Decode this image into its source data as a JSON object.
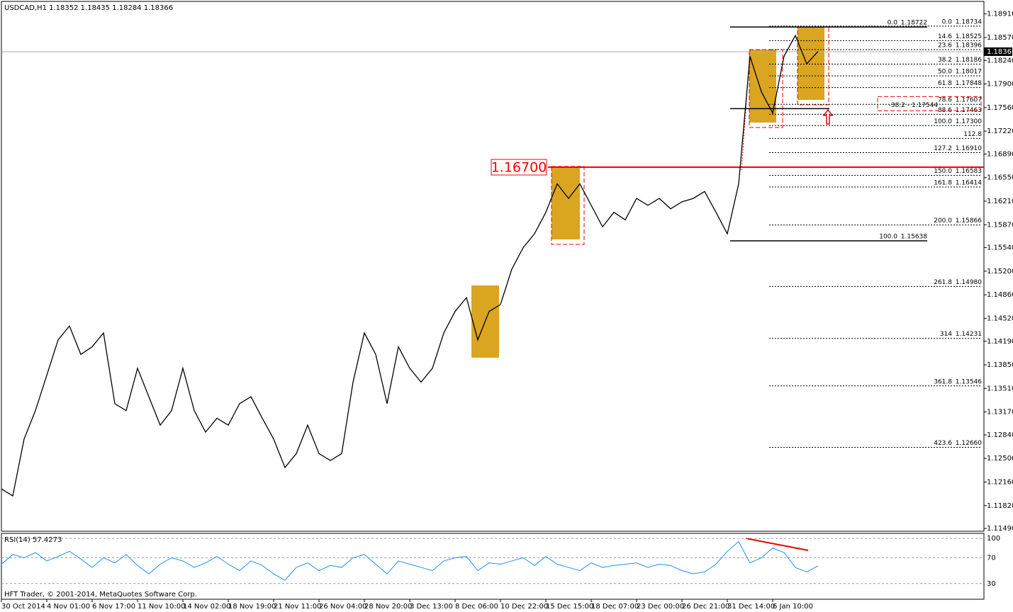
{
  "chart_data": [
    {
      "type": "line",
      "title": "USDCAD,H1  1.18352 1.18435 1.18284 1.18366",
      "color": "#000000",
      "values": [
        1.1206,
        1.1196,
        1.1278,
        1.1319,
        1.137,
        1.1421,
        1.1441,
        1.14,
        1.1411,
        1.1431,
        1.1329,
        1.1319,
        1.138,
        1.1339,
        1.1298,
        1.1319,
        1.138,
        1.1319,
        1.1288,
        1.1308,
        1.1298,
        1.1329,
        1.1339,
        1.1308,
        1.1278,
        1.1237,
        1.1257,
        1.1298,
        1.1257,
        1.1247,
        1.1257,
        1.136,
        1.1431,
        1.14,
        1.1329,
        1.1411,
        1.138,
        1.136,
        1.138,
        1.1431,
        1.1462,
        1.1482,
        1.1421,
        1.1462,
        1.1472,
        1.1523,
        1.1554,
        1.1574,
        1.1605,
        1.1646,
        1.1625,
        1.1646,
        1.1615,
        1.1584,
        1.1605,
        1.1594,
        1.1625,
        1.1615,
        1.1625,
        1.161,
        1.162,
        1.1625,
        1.1635,
        1.1605,
        1.1574,
        1.1646,
        1.183,
        1.1779,
        1.1748,
        1.183,
        1.186,
        1.1819,
        1.1837
      ],
      "xlim": [
        0,
        86.625
      ],
      "xticks": [
        {
          "value": 0,
          "label": "30 Oct 2014"
        },
        {
          "value": 4,
          "label": "4 Nov 01:00"
        },
        {
          "value": 8,
          "label": "6 Nov 17:00"
        },
        {
          "value": 12,
          "label": "11 Nov 10:00"
        },
        {
          "value": 16,
          "label": "14 Nov 02:00"
        },
        {
          "value": 20,
          "label": "18 Nov 19:00"
        },
        {
          "value": 24,
          "label": "21 Nov 11:00"
        },
        {
          "value": 28,
          "label": "26 Nov 04:00"
        },
        {
          "value": 32,
          "label": "28 Nov 20:00"
        },
        {
          "value": 36,
          "label": "3 Dec 13:00"
        },
        {
          "value": 40,
          "label": "8 Dec 06:00"
        },
        {
          "value": 44,
          "label": "10 Dec 22:00"
        },
        {
          "value": 48,
          "label": "15 Dec 15:00"
        },
        {
          "value": 52,
          "label": "18 Dec 07:00"
        },
        {
          "value": 56,
          "label": "23 Dec 00:00"
        },
        {
          "value": 60,
          "label": "26 Dec 21:00"
        },
        {
          "value": 64,
          "label": "31 Dec 14:00"
        },
        {
          "value": 68,
          "label": "6 Jan 10:00"
        }
      ],
      "ylim": [
        1.1145,
        1.1906
      ],
      "yticks": [
        {
          "value": 1.1891,
          "label": "1.18910"
        },
        {
          "value": 1.1857,
          "label": "1.18570"
        },
        {
          "value": 1.1824,
          "label": "1.18240"
        },
        {
          "value": 1.179,
          "label": "1.17900"
        },
        {
          "value": 1.1756,
          "label": "1.17560"
        },
        {
          "value": 1.1722,
          "label": "1.17220"
        },
        {
          "value": 1.1689,
          "label": "1.16890"
        },
        {
          "value": 1.1655,
          "label": "1.16550"
        },
        {
          "value": 1.1621,
          "label": "1.16210"
        },
        {
          "value": 1.1587,
          "label": "1.15870"
        },
        {
          "value": 1.1554,
          "label": "1.15540"
        },
        {
          "value": 1.152,
          "label": "1.15200"
        },
        {
          "value": 1.1486,
          "label": "1.14860"
        },
        {
          "value": 1.1452,
          "label": "1.14520"
        },
        {
          "value": 1.1419,
          "label": "1.14190"
        },
        {
          "value": 1.1385,
          "label": "1.13850"
        },
        {
          "value": 1.1351,
          "label": "1.13510"
        },
        {
          "value": 1.1317,
          "label": "1.13170"
        },
        {
          "value": 1.1284,
          "label": "1.12840"
        },
        {
          "value": 1.125,
          "label": "1.12500"
        },
        {
          "value": 1.1216,
          "label": "1.12160"
        },
        {
          "value": 1.1182,
          "label": "1.11820"
        },
        {
          "value": 1.1149,
          "label": "1.11490"
        }
      ],
      "current_price": {
        "value": 1.18366,
        "label": "1.18366"
      },
      "level_line": {
        "value": 1.167,
        "label": "1.16700",
        "color": "#ff0000"
      },
      "fib_left": [
        {
          "level": "0.0",
          "price": {
            "value": 1.18722,
            "label": "1.18722"
          }
        },
        {
          "level": "100.0",
          "price": {
            "value": 1.15638,
            "label": "1.15638"
          }
        }
      ],
      "fib_right": [
        {
          "level": "0.0",
          "price": {
            "value": 1.18734,
            "label": "1.18734"
          }
        },
        {
          "level": "14.6",
          "price": {
            "value": 1.18525,
            "label": "1.18525"
          }
        },
        {
          "level": "23.6",
          "price": {
            "value": 1.18396,
            "label": "1.18396"
          }
        },
        {
          "level": "38.2",
          "price": {
            "value": 1.18186,
            "label": "1.18186"
          }
        },
        {
          "level": "50.0",
          "price": {
            "value": 1.18017,
            "label": "1.18017"
          }
        },
        {
          "level": "61.8",
          "price": {
            "value": 1.17848,
            "label": "1.17848"
          }
        },
        {
          "level": "78.6",
          "price": {
            "value": 1.17607,
            "label": "1.17607"
          }
        },
        {
          "level": "88.6",
          "price": {
            "value": 1.17463,
            "label": "1.17463"
          }
        },
        {
          "level": "100.0",
          "price": {
            "value": 1.173,
            "label": "1.17300"
          }
        },
        {
          "level": "112.8",
          "price": 1.17116
        },
        {
          "level": "127.2",
          "price": {
            "value": 1.1691,
            "label": "1.16910"
          }
        },
        {
          "level": "150.0",
          "price": {
            "value": 1.16583,
            "label": "1.16583"
          }
        },
        {
          "level": "161.8",
          "price": {
            "value": 1.16414,
            "label": "1.16414"
          }
        },
        {
          "level": "200.0",
          "price": {
            "value": 1.15866,
            "label": "1.15866"
          }
        },
        {
          "level": "261.8",
          "price": {
            "value": 1.1498,
            "label": "1.14980"
          }
        },
        {
          "level": "314",
          "price": {
            "value": 1.14231,
            "label": "1.14231"
          }
        },
        {
          "level": "361.8",
          "price": {
            "value": 1.13546,
            "label": "1.13546"
          }
        },
        {
          "level": "423.6",
          "price": {
            "value": 1.1266,
            "label": "1.12660"
          }
        }
      ],
      "extension": {
        "level": "-38.2 -",
        "price": {
          "value": 1.17544,
          "label": "1.17544"
        }
      }
    },
    {
      "type": "line",
      "title": "RSI(14) 57.4273",
      "color": "#1e90ff",
      "values": [
        60,
        75,
        70,
        78,
        65,
        72,
        80,
        68,
        55,
        70,
        62,
        75,
        58,
        45,
        60,
        70,
        65,
        55,
        62,
        72,
        60,
        50,
        65,
        58,
        45,
        35,
        55,
        62,
        50,
        58,
        55,
        70,
        75,
        60,
        45,
        65,
        60,
        55,
        50,
        65,
        70,
        72,
        50,
        62,
        60,
        65,
        70,
        58,
        72,
        60,
        55,
        50,
        62,
        55,
        58,
        60,
        62,
        55,
        60,
        58,
        50,
        45,
        48,
        60,
        80,
        95,
        62,
        70,
        85,
        78,
        55,
        48,
        57.4273
      ],
      "ylim": [
        5.6,
        107.8
      ],
      "yticks": [
        30,
        70,
        100
      ]
    }
  ],
  "footer": "HFT Trader, © 2001-2014, MetaQuotes Software Corp."
}
